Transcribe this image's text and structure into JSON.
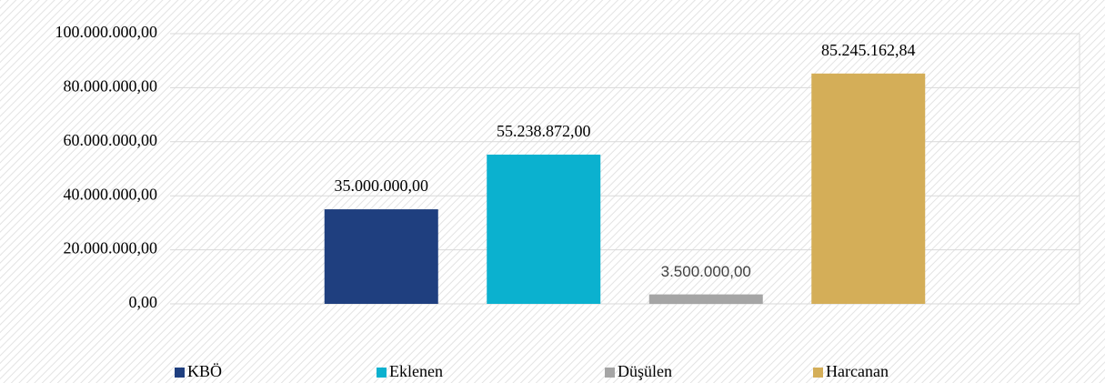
{
  "chart_data": {
    "type": "bar",
    "categories": [
      null
    ],
    "series": [
      {
        "name": "KBÖ",
        "color": "#1f3f7f",
        "values": [
          35000000
        ],
        "value_labels": [
          "35.000.000,00"
        ]
      },
      {
        "name": "Eklenen",
        "color": "#0bb1cf",
        "values": [
          55238872
        ],
        "value_labels": [
          "55.238.872,00"
        ]
      },
      {
        "name": "Düşülen",
        "color": "#a5a5a5",
        "values": [
          3500000
        ],
        "value_labels": [
          "3.500.000,00"
        ]
      },
      {
        "name": "Harcanan",
        "color": "#d4ae58",
        "values": [
          85245162.84
        ],
        "value_labels": [
          "85.245.162,84"
        ]
      }
    ],
    "ylim": [
      0,
      100000000
    ],
    "yticks": [
      {
        "value": 0,
        "label": "0,00"
      },
      {
        "value": 20000000,
        "label": "20.000.000,00"
      },
      {
        "value": 40000000,
        "label": "40.000.000,00"
      },
      {
        "value": 60000000,
        "label": "60.000.000,00"
      },
      {
        "value": 80000000,
        "label": "80.000.000,00"
      },
      {
        "value": 100000000,
        "label": "100.000.000,00"
      }
    ],
    "grid": true,
    "legend": "bottom"
  }
}
